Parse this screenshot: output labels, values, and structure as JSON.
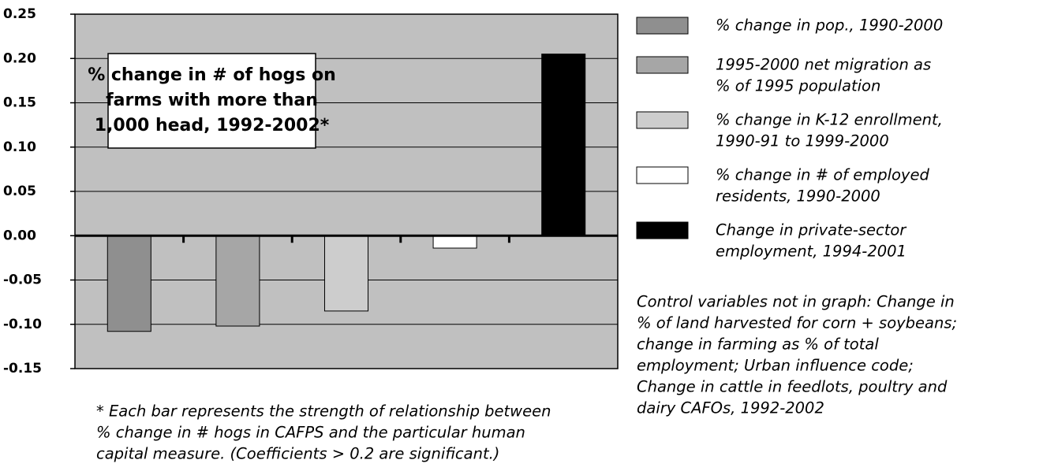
{
  "chart_data": {
    "type": "bar",
    "annotation": [
      "% change in # of hogs on",
      "farms with more than",
      "1,000 head, 1992-2002*"
    ],
    "categories": [
      [
        "% change in pop., 1990-2000"
      ],
      [
        "1995-2000 net migration as",
        "% of 1995 population"
      ],
      [
        "% change in K-12 enrollment,",
        "1990-91 to 1999-2000"
      ],
      [
        "% change in # of employed",
        "residents, 1990-2000"
      ],
      [
        "Change in private-sector",
        "employment, 1994-2001"
      ]
    ],
    "values": [
      -0.108,
      -0.102,
      -0.085,
      -0.014,
      0.205
    ],
    "colors": [
      "#8f8f8f",
      "#a6a6a6",
      "#cdcdcd",
      "#ffffff",
      "#000000"
    ],
    "ylim": [
      -0.15,
      0.25
    ],
    "yticks": [
      {
        "value": 0.25,
        "label": "0.25"
      },
      {
        "value": 0.2,
        "label": "0.20"
      },
      {
        "value": 0.15,
        "label": "0.15"
      },
      {
        "value": 0.1,
        "label": "0.10"
      },
      {
        "value": 0.05,
        "label": "0.05"
      },
      {
        "value": 0,
        "label": "0.00"
      },
      {
        "value": -0.05,
        "label": "-0.05"
      },
      {
        "value": -0.1,
        "label": "-0.10"
      },
      {
        "value": -0.15,
        "label": "-0.15"
      }
    ],
    "grid": true,
    "plot_background": "#c0c0c0",
    "note": [
      "Control variables not in graph: Change in",
      "% of land harvested for corn + soybeans;",
      "change in farming as % of total",
      "employment; Urban influence code;",
      "Change in cattle in feedlots, poultry and",
      "dairy CAFOs, 1992-2002"
    ],
    "footnote": [
      "* Each bar represents the strength of relationship between",
      "% change in # hogs in CAFPS and the particular human",
      "capital measure. (Coefficients > 0.2 are significant.)"
    ]
  }
}
